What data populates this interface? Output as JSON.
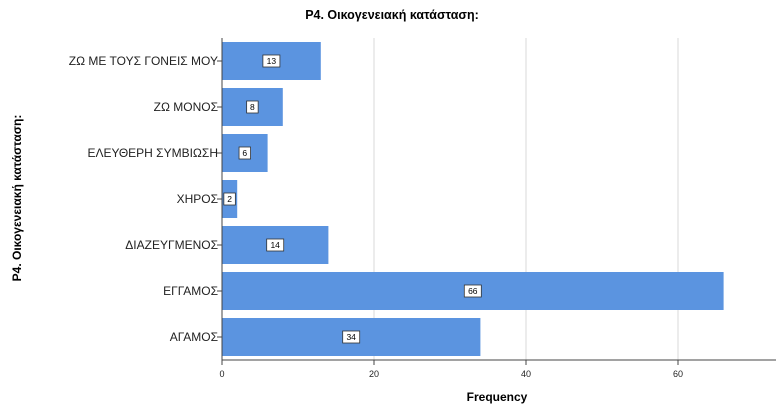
{
  "chart_data": {
    "type": "bar",
    "orientation": "horizontal",
    "title": "P4. Οικογενειακή κατάσταση:",
    "xlabel": "Frequency",
    "ylabel": "P4. Οικογενειακή κατάσταση:",
    "categories": [
      "ΖΩ ΜΕ ΤΟΥΣ ΓΟΝΕΙΣ ΜΟΥ",
      "ΖΩ ΜΟΝΟΣ",
      "ΕΛΕΥΘΕΡΗ ΣΥΜΒΙΩΣΗ",
      "ΧΗΡΟΣ",
      "ΔΙΑΖΕΥΓΜΕΝΟΣ",
      "ΕΓΓΑΜΟΣ",
      "ΑΓΑΜΟΣ"
    ],
    "values": [
      13,
      8,
      6,
      2,
      14,
      66,
      34
    ],
    "xticks": [
      0,
      20,
      40,
      60
    ],
    "xlim": [
      0,
      72
    ],
    "grid": true,
    "bar_color": "#5b94e0",
    "grid_color": "#d9d9d9"
  }
}
